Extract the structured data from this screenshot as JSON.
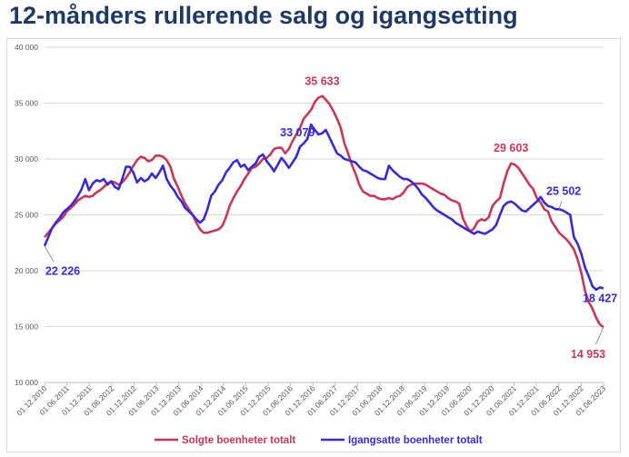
{
  "title": "12-månders rullerende salg og igangsetting",
  "chart_data": {
    "type": "line",
    "ylim": [
      10000,
      40000
    ],
    "y_ticks": [
      "10 000",
      "15 000",
      "20 000",
      "25 000",
      "30 000",
      "35 000",
      "40 000"
    ],
    "x_tick_labels": [
      "01.12.2010",
      "01.06.2011",
      "01.12.2011",
      "01.06.2012",
      "01.12.2012",
      "01.06.2013",
      "01.12.2013",
      "01.06.2014",
      "01.12.2014",
      "01.06.2015",
      "01.12.2015",
      "01.06.2016",
      "01.12.2016",
      "01.06.2017",
      "01.12.2017",
      "01.06.2018",
      "01.12.2018",
      "01.06.2019",
      "01.12.2019",
      "01.06.2020",
      "01.12.2020",
      "01.06.2021",
      "01.12.2021",
      "01.06.2022",
      "01.12.2022",
      "01.06.2023"
    ],
    "grid": true,
    "legend_position": "bottom",
    "colors": {
      "solgte": "#c8375a",
      "igangsatte": "#3a2bd0"
    },
    "series": [
      {
        "name": "Solgte boenheter totalt",
        "values": [
          23000,
          23400,
          23800,
          24200,
          24500,
          24800,
          25300,
          25600,
          25900,
          26300,
          26500,
          26700,
          26600,
          26700,
          27000,
          27200,
          27500,
          27800,
          28000,
          27900,
          27700,
          27900,
          28300,
          28800,
          29400,
          29900,
          30200,
          30100,
          29800,
          29900,
          30300,
          30300,
          30200,
          29900,
          29300,
          28200,
          27500,
          26700,
          26000,
          25500,
          25000,
          24300,
          23700,
          23400,
          23400,
          23500,
          23600,
          23700,
          24000,
          24800,
          25800,
          26500,
          27100,
          27600,
          28200,
          28700,
          29200,
          29300,
          29600,
          30000,
          30100,
          30400,
          30900,
          31000,
          31000,
          30500,
          30900,
          31600,
          32200,
          32800,
          33600,
          34000,
          34400,
          35100,
          35500,
          35633,
          35300,
          34900,
          34300,
          33600,
          32800,
          31400,
          30500,
          29500,
          28700,
          27700,
          27100,
          26900,
          26700,
          26700,
          26500,
          26400,
          26400,
          26500,
          26400,
          26600,
          26700,
          27000,
          27500,
          27700,
          27800,
          27800,
          27800,
          27700,
          27500,
          27300,
          27100,
          26900,
          26800,
          26500,
          26300,
          26200,
          26000,
          24700,
          24000,
          23500,
          23800,
          24400,
          24600,
          24500,
          24800,
          25800,
          26200,
          26500,
          27800,
          28900,
          29603,
          29500,
          29200,
          28700,
          28200,
          27700,
          27300,
          26500,
          26100,
          25500,
          25300,
          24400,
          23900,
          23400,
          23100,
          22800,
          22400,
          21900,
          21000,
          19800,
          18200,
          17200,
          16600,
          15800,
          15200,
          14953
        ]
      },
      {
        "name": "Igangsatte boenheter totalt",
        "values": [
          22226,
          23000,
          23800,
          24300,
          24700,
          25200,
          25500,
          25800,
          26200,
          26700,
          27300,
          28200,
          27200,
          27800,
          28100,
          28000,
          28200,
          27700,
          28000,
          27500,
          27300,
          28200,
          29300,
          29300,
          28800,
          27900,
          28300,
          28000,
          28200,
          28700,
          28300,
          28800,
          29400,
          28200,
          27600,
          27200,
          26600,
          26200,
          25600,
          25300,
          25000,
          24600,
          24300,
          24600,
          25500,
          26700,
          27100,
          27700,
          28100,
          28800,
          29200,
          29700,
          29900,
          29300,
          29500,
          29000,
          29300,
          29600,
          30200,
          30400,
          29800,
          29400,
          28900,
          29500,
          30100,
          29700,
          29200,
          29700,
          30200,
          31100,
          31400,
          31800,
          33079,
          32600,
          32200,
          32300,
          32600,
          31900,
          31200,
          30500,
          30300,
          30000,
          29900,
          29800,
          29700,
          29300,
          29000,
          28900,
          28700,
          28500,
          28300,
          28200,
          28200,
          29400,
          29000,
          28700,
          28400,
          28200,
          28200,
          28000,
          27700,
          27300,
          26800,
          26500,
          26100,
          25700,
          25400,
          25200,
          25000,
          24800,
          24600,
          24300,
          24100,
          23900,
          23700,
          23500,
          23300,
          23500,
          23400,
          23300,
          23500,
          23700,
          24100,
          25000,
          25800,
          26100,
          26200,
          26000,
          25700,
          25400,
          25300,
          25600,
          25900,
          26200,
          26600,
          26100,
          25800,
          25700,
          25500,
          25502,
          25400,
          25200,
          25000,
          23000,
          22400,
          21500,
          20300,
          19500,
          18600,
          18300,
          18500,
          18427
        ]
      }
    ],
    "data_labels": [
      {
        "series": "solgte",
        "text": "35 633"
      },
      {
        "series": "igangsatte",
        "text": "33 079"
      },
      {
        "series": "igangsatte",
        "text": "22 226"
      },
      {
        "series": "solgte",
        "text": "29 603"
      },
      {
        "series": "igangsatte",
        "text": "25 502"
      },
      {
        "series": "igangsatte",
        "text": "18 427"
      },
      {
        "series": "solgte",
        "text": "14 953"
      }
    ]
  }
}
